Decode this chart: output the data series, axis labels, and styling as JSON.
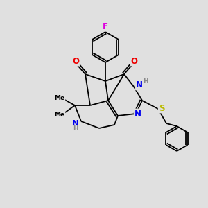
{
  "background_color": "#e0e0e0",
  "atom_colors": {
    "C": "#000000",
    "N": "#0000ee",
    "O": "#ee0000",
    "S": "#bbbb00",
    "F": "#dd00dd",
    "H": "#888888"
  },
  "bond_color": "#000000",
  "figsize": [
    3.0,
    3.0
  ],
  "dpi": 100
}
